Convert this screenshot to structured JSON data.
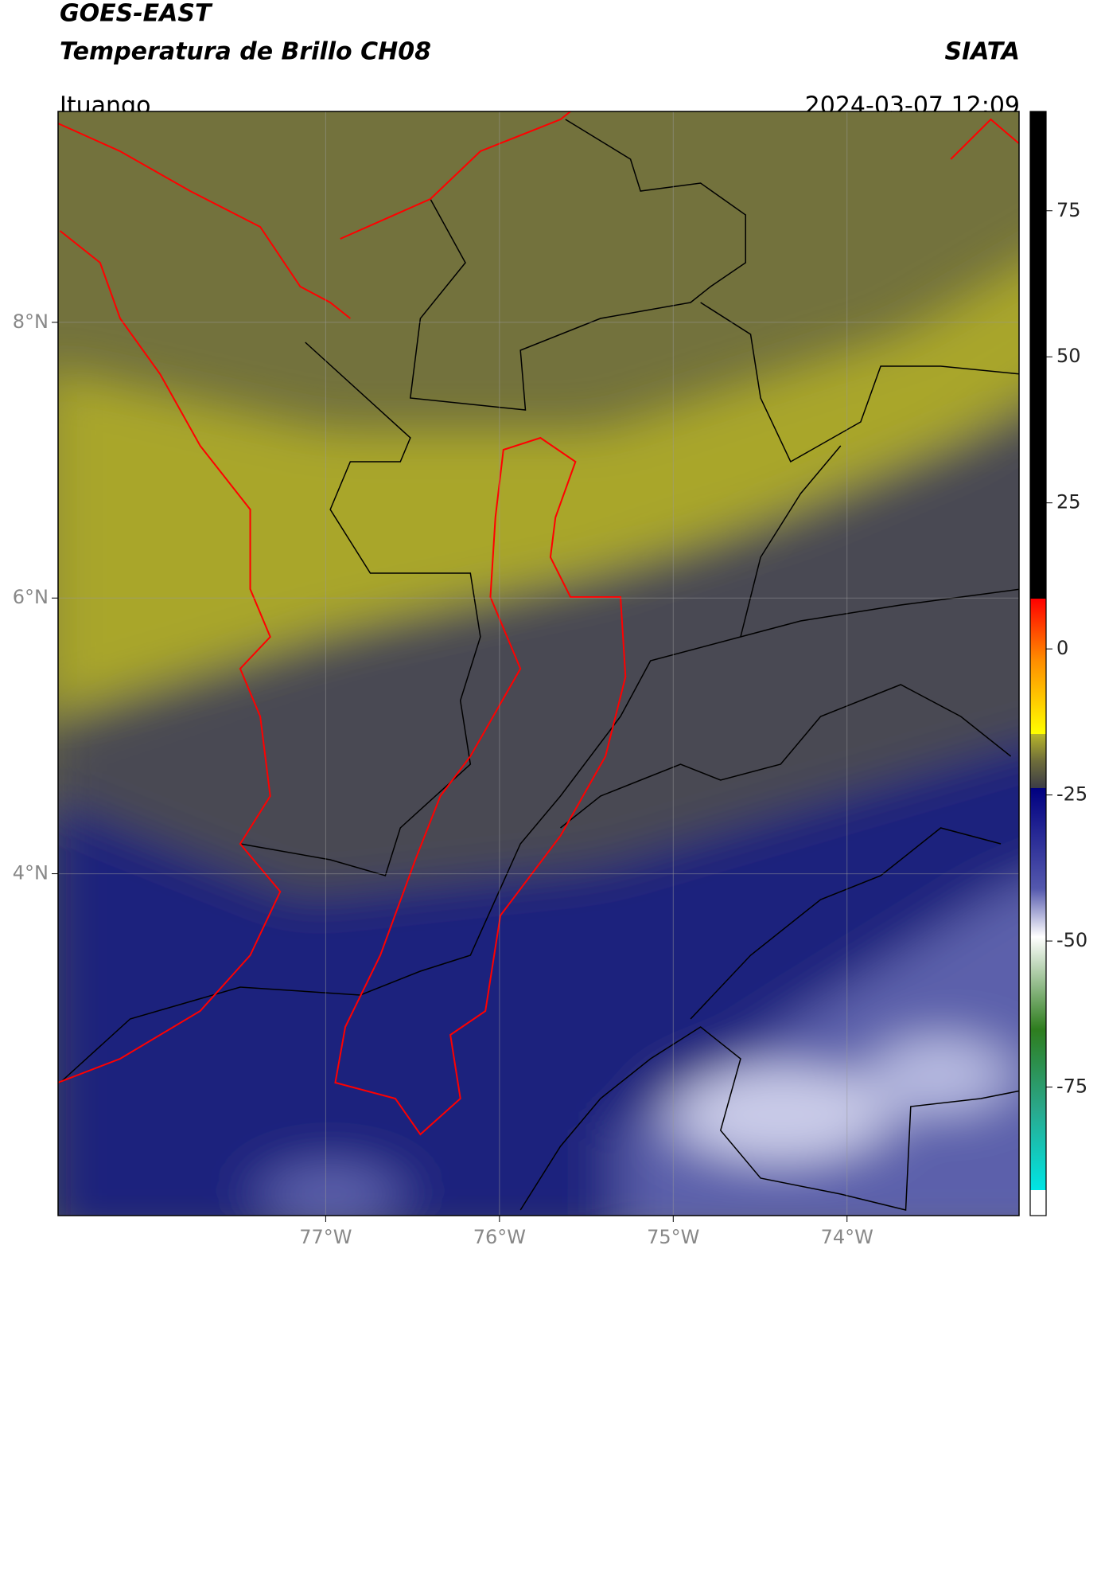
{
  "header": {
    "title": "GOES-EAST",
    "subtitle": "Temperatura de Brillo CH08",
    "org": "SIATA",
    "location": "Ituango",
    "datetime": "2024-03-07 12:09"
  },
  "map": {
    "xlim": [
      -78.54,
      -73.01
    ],
    "ylim": [
      1.52,
      9.53
    ],
    "xticks": [
      {
        "value": -77,
        "label": "77°W"
      },
      {
        "value": -76,
        "label": "76°W"
      },
      {
        "value": -75,
        "label": "75°W"
      },
      {
        "value": -74,
        "label": "74°W"
      }
    ],
    "yticks": [
      {
        "value": 8,
        "label": "8°N"
      },
      {
        "value": 6,
        "label": "6°N"
      },
      {
        "value": 4,
        "label": "4°N"
      }
    ],
    "grid": true
  },
  "colorbar": {
    "lim": [
      -97,
      92
    ],
    "ticks": [
      75,
      50,
      25,
      0,
      -25,
      -50,
      -75
    ]
  }
}
